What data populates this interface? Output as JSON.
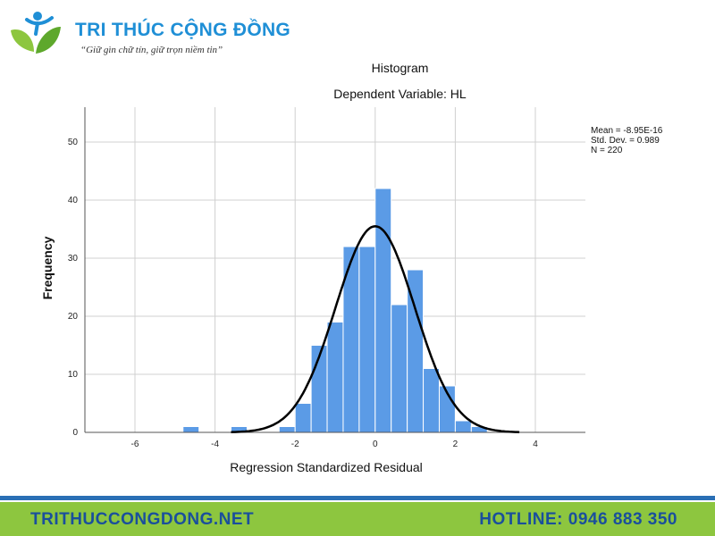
{
  "brand": {
    "name": "TRI THÚC CỘNG ĐỒNG",
    "slogan": "“Giữ gìn chữ tín, giữ trọn niềm tin”"
  },
  "chart_data": {
    "type": "bar",
    "title": "Histogram",
    "subtitle": "Dependent Variable: HL",
    "xlabel": "Regression Standardized Residual",
    "ylabel": "Frequency",
    "xlim": [
      -7.25,
      5.25
    ],
    "ylim": [
      0,
      56
    ],
    "x_ticks": [
      -6,
      -4,
      -2,
      0,
      2,
      4
    ],
    "y_ticks": [
      0,
      10,
      20,
      30,
      40,
      50
    ],
    "grid": true,
    "bin_width": 0.4,
    "bin_starts": [
      -4.8,
      -3.6,
      -2.4,
      -2.0,
      -1.6,
      -1.2,
      -0.8,
      -0.4,
      0.0,
      0.4,
      0.8,
      1.2,
      1.6,
      2.0,
      2.4
    ],
    "counts": [
      1,
      1,
      1,
      5,
      15,
      19,
      32,
      32,
      42,
      22,
      28,
      11,
      8,
      2,
      1
    ],
    "bar_color": "#5b9be6",
    "normal_curve": {
      "mean": 0.0,
      "sd": 0.989,
      "n": 220
    },
    "legend_position": "top-right",
    "stats_text": [
      "Mean = -8.95E-16",
      "Std. Dev. = 0.989",
      "N = 220"
    ]
  },
  "footer": {
    "website": "TRITHUCCONGDONG.NET",
    "hotline": "HOTLINE: 0946 883 350"
  }
}
